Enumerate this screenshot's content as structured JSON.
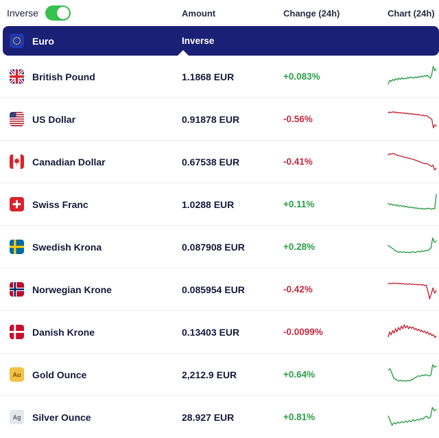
{
  "controls": {
    "inverse_label": "Inverse",
    "toggle_on": true
  },
  "columns": {
    "amount": "Amount",
    "change": "Change (24h)",
    "chart": "Chart (24h)"
  },
  "base": {
    "name": "Euro",
    "inverse_label": "Inverse",
    "flag": "eu"
  },
  "colors": {
    "navy": "#1a2076",
    "green": "#2b9e47",
    "red": "#c5293e",
    "toggle_green": "#35c24f"
  },
  "chart_data": {
    "type": "line",
    "note": "24h sparklines per row, values normalized 0-100",
    "legend_position": "none",
    "grid": false
  },
  "rows": [
    {
      "name": "British Pound",
      "flag": "gb",
      "amount": "1.1868 EUR",
      "change": "+0.083%",
      "direction": "up",
      "spark": [
        18,
        34,
        30,
        38,
        34,
        42,
        36,
        44,
        38,
        46,
        40,
        44,
        42,
        48,
        44,
        50,
        46,
        44,
        50,
        46,
        52,
        48,
        54,
        50,
        56,
        52,
        58,
        50,
        44,
        60,
        98,
        78,
        86
      ]
    },
    {
      "name": "US Dollar",
      "flag": "us",
      "amount": "0.91878 EUR",
      "change": "-0.56%",
      "direction": "down",
      "spark": [
        80,
        84,
        81,
        85,
        82,
        84,
        80,
        82,
        79,
        81,
        78,
        80,
        76,
        78,
        75,
        77,
        74,
        76,
        72,
        74,
        71,
        73,
        70,
        68,
        70,
        66,
        68,
        64,
        60,
        56,
        50,
        12,
        26,
        20
      ]
    },
    {
      "name": "Canadian Dollar",
      "flag": "ca",
      "amount": "0.67538 EUR",
      "change": "-0.41%",
      "direction": "down",
      "spark": [
        82,
        88,
        85,
        90,
        86,
        82,
        80,
        78,
        76,
        74,
        72,
        70,
        68,
        66,
        64,
        62,
        60,
        57,
        54,
        51,
        48,
        45,
        42,
        44,
        40,
        36,
        30,
        36,
        14,
        22
      ]
    },
    {
      "name": "Swiss Franc",
      "flag": "ch",
      "amount": "1.0288 EUR",
      "change": "+0.11%",
      "direction": "up",
      "spark": [
        56,
        50,
        53,
        47,
        50,
        45,
        48,
        43,
        46,
        41,
        44,
        39,
        42,
        37,
        40,
        35,
        38,
        33,
        36,
        31,
        34,
        30,
        33,
        29,
        32,
        30,
        34,
        31,
        29,
        33,
        30,
        97
      ]
    },
    {
      "name": "Swedish Krona",
      "flag": "se",
      "amount": "0.087908 EUR",
      "change": "+0.28%",
      "direction": "up",
      "spark": [
        58,
        52,
        46,
        40,
        34,
        29,
        27,
        30,
        26,
        29,
        25,
        28,
        24,
        27,
        29,
        25,
        28,
        31,
        28,
        33,
        30,
        36,
        33,
        39,
        46,
        92,
        72,
        78
      ]
    },
    {
      "name": "Norwegian Krone",
      "flag": "no",
      "amount": "0.085954 EUR",
      "change": "-0.42%",
      "direction": "down",
      "spark": [
        76,
        80,
        77,
        81,
        78,
        80,
        77,
        79,
        76,
        78,
        75,
        77,
        74,
        77,
        74,
        76,
        73,
        75,
        72,
        74,
        71,
        73,
        69,
        71,
        42,
        8,
        32,
        58,
        34,
        46
      ]
    },
    {
      "name": "Danish Krone",
      "flag": "dk",
      "amount": "0.13403 EUR",
      "change": "-0.0099%",
      "direction": "down",
      "spark": [
        30,
        52,
        38,
        58,
        46,
        66,
        52,
        72,
        60,
        78,
        66,
        84,
        70,
        80,
        66,
        76,
        68,
        74,
        62,
        68,
        58,
        64,
        54,
        60,
        50,
        56,
        46,
        52,
        40,
        46,
        34,
        40,
        26,
        32
      ]
    },
    {
      "name": "Gold Ounce",
      "flag": "au-badge",
      "badge": "Au",
      "amount": "2,212.9 EUR",
      "change": "+0.64%",
      "direction": "up",
      "spark": [
        72,
        78,
        58,
        36,
        30,
        26,
        22,
        26,
        21,
        24,
        21,
        25,
        22,
        27,
        31,
        36,
        41,
        46,
        43,
        49,
        46,
        51,
        48,
        45,
        49,
        96,
        84,
        90
      ]
    },
    {
      "name": "Silver Ounce",
      "flag": "ag-badge",
      "badge": "Ag",
      "amount": "28.927 EUR",
      "change": "+0.81%",
      "direction": "up",
      "spark": [
        56,
        36,
        14,
        26,
        20,
        29,
        24,
        31,
        26,
        33,
        28,
        36,
        31,
        39,
        34,
        41,
        37,
        46,
        41,
        51,
        56,
        46,
        52,
        96,
        80,
        86
      ]
    }
  ]
}
